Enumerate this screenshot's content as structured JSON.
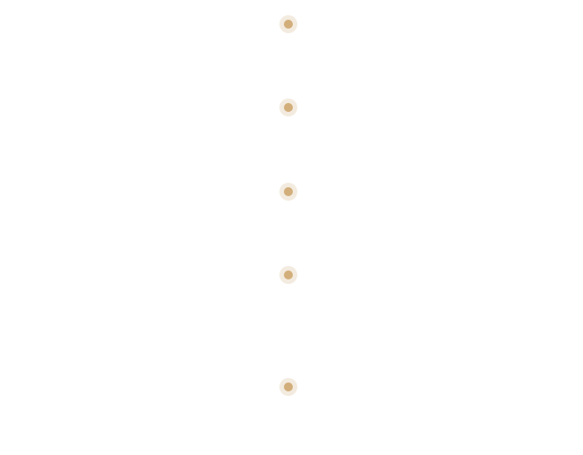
{
  "colors": {
    "background": "#ffffff",
    "marker_ring": "#f3ebdf",
    "marker_dot": "#d2ae7b"
  },
  "timeline": {
    "markers": [
      {
        "icon": "timeline-dot-icon"
      },
      {
        "icon": "timeline-dot-icon"
      },
      {
        "icon": "timeline-dot-icon"
      },
      {
        "icon": "timeline-dot-icon"
      },
      {
        "icon": "timeline-dot-icon"
      }
    ]
  }
}
